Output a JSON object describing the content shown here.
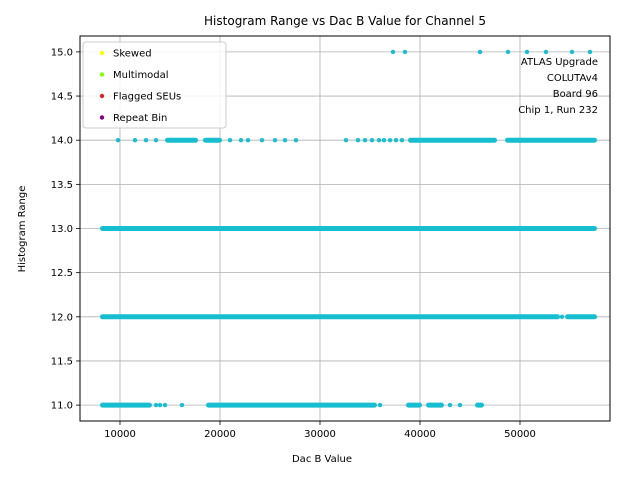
{
  "chart_data": {
    "type": "scatter",
    "title": "Histogram Range vs Dac B Value for Channel 5",
    "xlabel": "Dac B Value",
    "ylabel": "Histogram Range",
    "xlim": [
      6000,
      59000
    ],
    "ylim": [
      10.82,
      15.18
    ],
    "xticks": [
      10000,
      20000,
      30000,
      40000,
      50000
    ],
    "yticks": [
      11.0,
      11.5,
      12.0,
      12.5,
      13.0,
      13.5,
      14.0,
      14.5,
      15.0
    ],
    "xtick_labels": [
      "10000",
      "20000",
      "30000",
      "40000",
      "50000"
    ],
    "ytick_labels": [
      "11.0",
      "11.5",
      "12.0",
      "12.5",
      "13.0",
      "13.5",
      "14.0",
      "14.5",
      "15.0"
    ],
    "grid": true,
    "legend_position": "top-left",
    "legend": [
      {
        "label": "Skewed",
        "color": "#ffff00"
      },
      {
        "label": "Multimodal",
        "color": "#7fff00"
      },
      {
        "label": "Flagged SEUs",
        "color": "#d62728"
      },
      {
        "label": "Repeat Bin",
        "color": "#800080"
      }
    ],
    "point_color": "#17becf",
    "annotation": [
      "ATLAS Upgrade",
      "COLUTAv4",
      "Board 96",
      "Chip 1, Run 232"
    ],
    "series": [
      {
        "y": 15.0,
        "segments": [],
        "points": [
          37300,
          38500,
          46000,
          48800,
          50700,
          52600,
          55200,
          57000
        ]
      },
      {
        "y": 14.0,
        "segments": [
          [
            14700,
            17600
          ],
          [
            18500,
            20000
          ],
          [
            39000,
            47500
          ],
          [
            48700,
            57500
          ]
        ],
        "points": [
          9800,
          11500,
          12600,
          13600,
          21000,
          22100,
          22800,
          24200,
          25500,
          26500,
          27600,
          32600,
          33800,
          34500,
          35200,
          35900,
          36400,
          37000,
          37600,
          38200
        ]
      },
      {
        "y": 13.0,
        "segments": [
          [
            8200,
            57500
          ]
        ],
        "points": []
      },
      {
        "y": 12.0,
        "segments": [
          [
            8200,
            53800
          ],
          [
            54700,
            57500
          ]
        ],
        "points": [
          54200
        ]
      },
      {
        "y": 11.0,
        "segments": [
          [
            8200,
            13000
          ],
          [
            18800,
            35500
          ],
          [
            38800,
            40000
          ],
          [
            40800,
            42200
          ],
          [
            45700,
            46200
          ]
        ],
        "points": [
          13600,
          14000,
          14500,
          16200,
          36000,
          43000,
          44000
        ]
      }
    ]
  }
}
